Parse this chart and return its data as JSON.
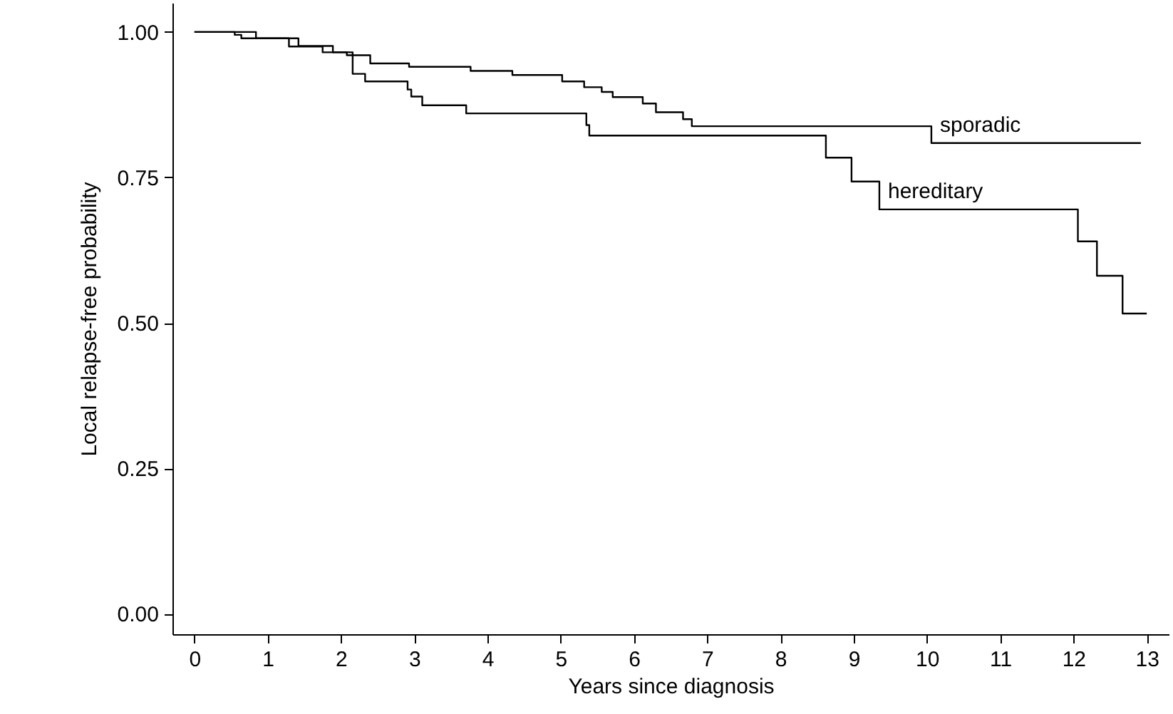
{
  "chart_data": {
    "type": "step",
    "xlabel": "Years since diagnosis",
    "ylabel": "Local relapse-free probability",
    "xlim": [
      -0.3,
      13.3
    ],
    "xticks": [
      0,
      1,
      2,
      3,
      4,
      5,
      6,
      7,
      8,
      9,
      10,
      11,
      12,
      13
    ],
    "ylim": [
      -0.035,
      1.05
    ],
    "yticks": [
      {
        "value": 0,
        "label": "0.00"
      },
      {
        "value": 0.25,
        "label": "0.25"
      },
      {
        "value": 0.5,
        "label": "0.50"
      },
      {
        "value": 0.75,
        "label": "0.75"
      },
      {
        "value": 1,
        "label": "1.00"
      }
    ],
    "grid": false,
    "marker": "none",
    "line_style": "solid",
    "series": [
      {
        "name": "sporadic",
        "color": "#000000",
        "x": [
          0,
          0.55,
          0.64,
          1.42,
          1.89,
          2.08,
          2.4,
          2.93,
          3.77,
          4.34,
          5.02,
          5.32,
          5.56,
          5.71,
          6.12,
          6.3,
          6.67,
          6.79,
          10.06,
          12.92
        ],
        "values": [
          1,
          0.995,
          0.989,
          0.976,
          0.965,
          0.96,
          0.946,
          0.94,
          0.933,
          0.926,
          0.915,
          0.905,
          0.897,
          0.888,
          0.877,
          0.862,
          0.85,
          0.838,
          0.809,
          0.809
        ]
      },
      {
        "name": "hereditary",
        "color": "#000000",
        "x": [
          0,
          0.84,
          1.29,
          1.75,
          2.16,
          2.33,
          2.91,
          2.96,
          3.11,
          3.71,
          5.35,
          5.39,
          8.62,
          8.97,
          9.35,
          12.06,
          12.32,
          12.67,
          13.0
        ],
        "values": [
          1,
          0.989,
          0.975,
          0.965,
          0.928,
          0.915,
          0.901,
          0.889,
          0.874,
          0.86,
          0.84,
          0.822,
          0.784,
          0.743,
          0.695,
          0.64,
          0.581,
          0.516,
          0.516
        ]
      }
    ]
  }
}
